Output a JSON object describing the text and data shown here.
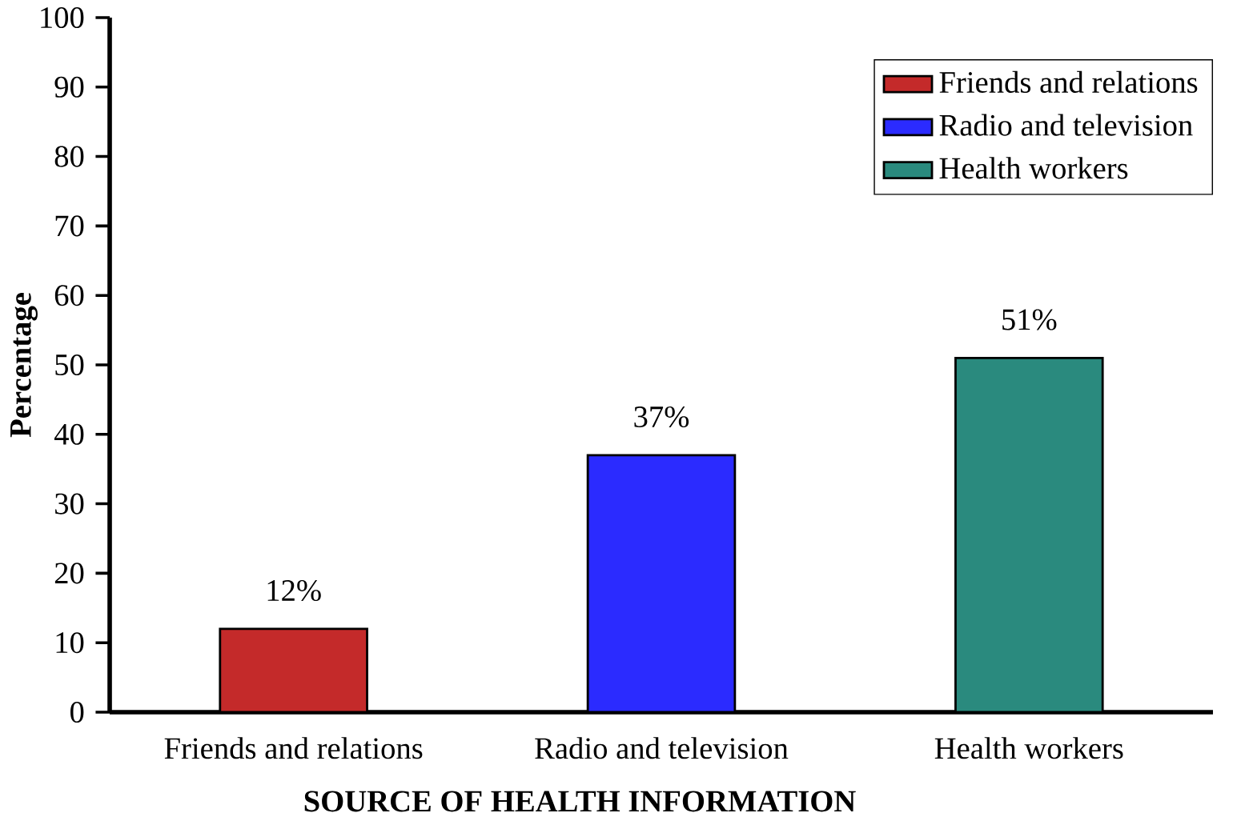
{
  "chart_data": {
    "type": "bar",
    "xlabel": "SOURCE OF  HEALTH INFORMATION",
    "ylabel": "Percentage",
    "categories": [
      "Friends and relations",
      "Radio and television",
      "Health workers"
    ],
    "series": [
      {
        "name": "Friends and relations",
        "color": "#c42a2a",
        "values": [
          12,
          null,
          null
        ],
        "value_labels": [
          "12%",
          null,
          null
        ]
      },
      {
        "name": "Radio and television",
        "color": "#2b2bff",
        "values": [
          null,
          37,
          null
        ],
        "value_labels": [
          null,
          "37%",
          null
        ]
      },
      {
        "name": "Health workers",
        "color": "#2a8a7e",
        "values": [
          null,
          null,
          51
        ],
        "value_labels": [
          null,
          null,
          "51%"
        ]
      }
    ],
    "ylim": [
      0,
      100
    ],
    "yticks": [
      0,
      10,
      20,
      30,
      40,
      50,
      60,
      70,
      80,
      90,
      100
    ],
    "legend": "top right"
  }
}
